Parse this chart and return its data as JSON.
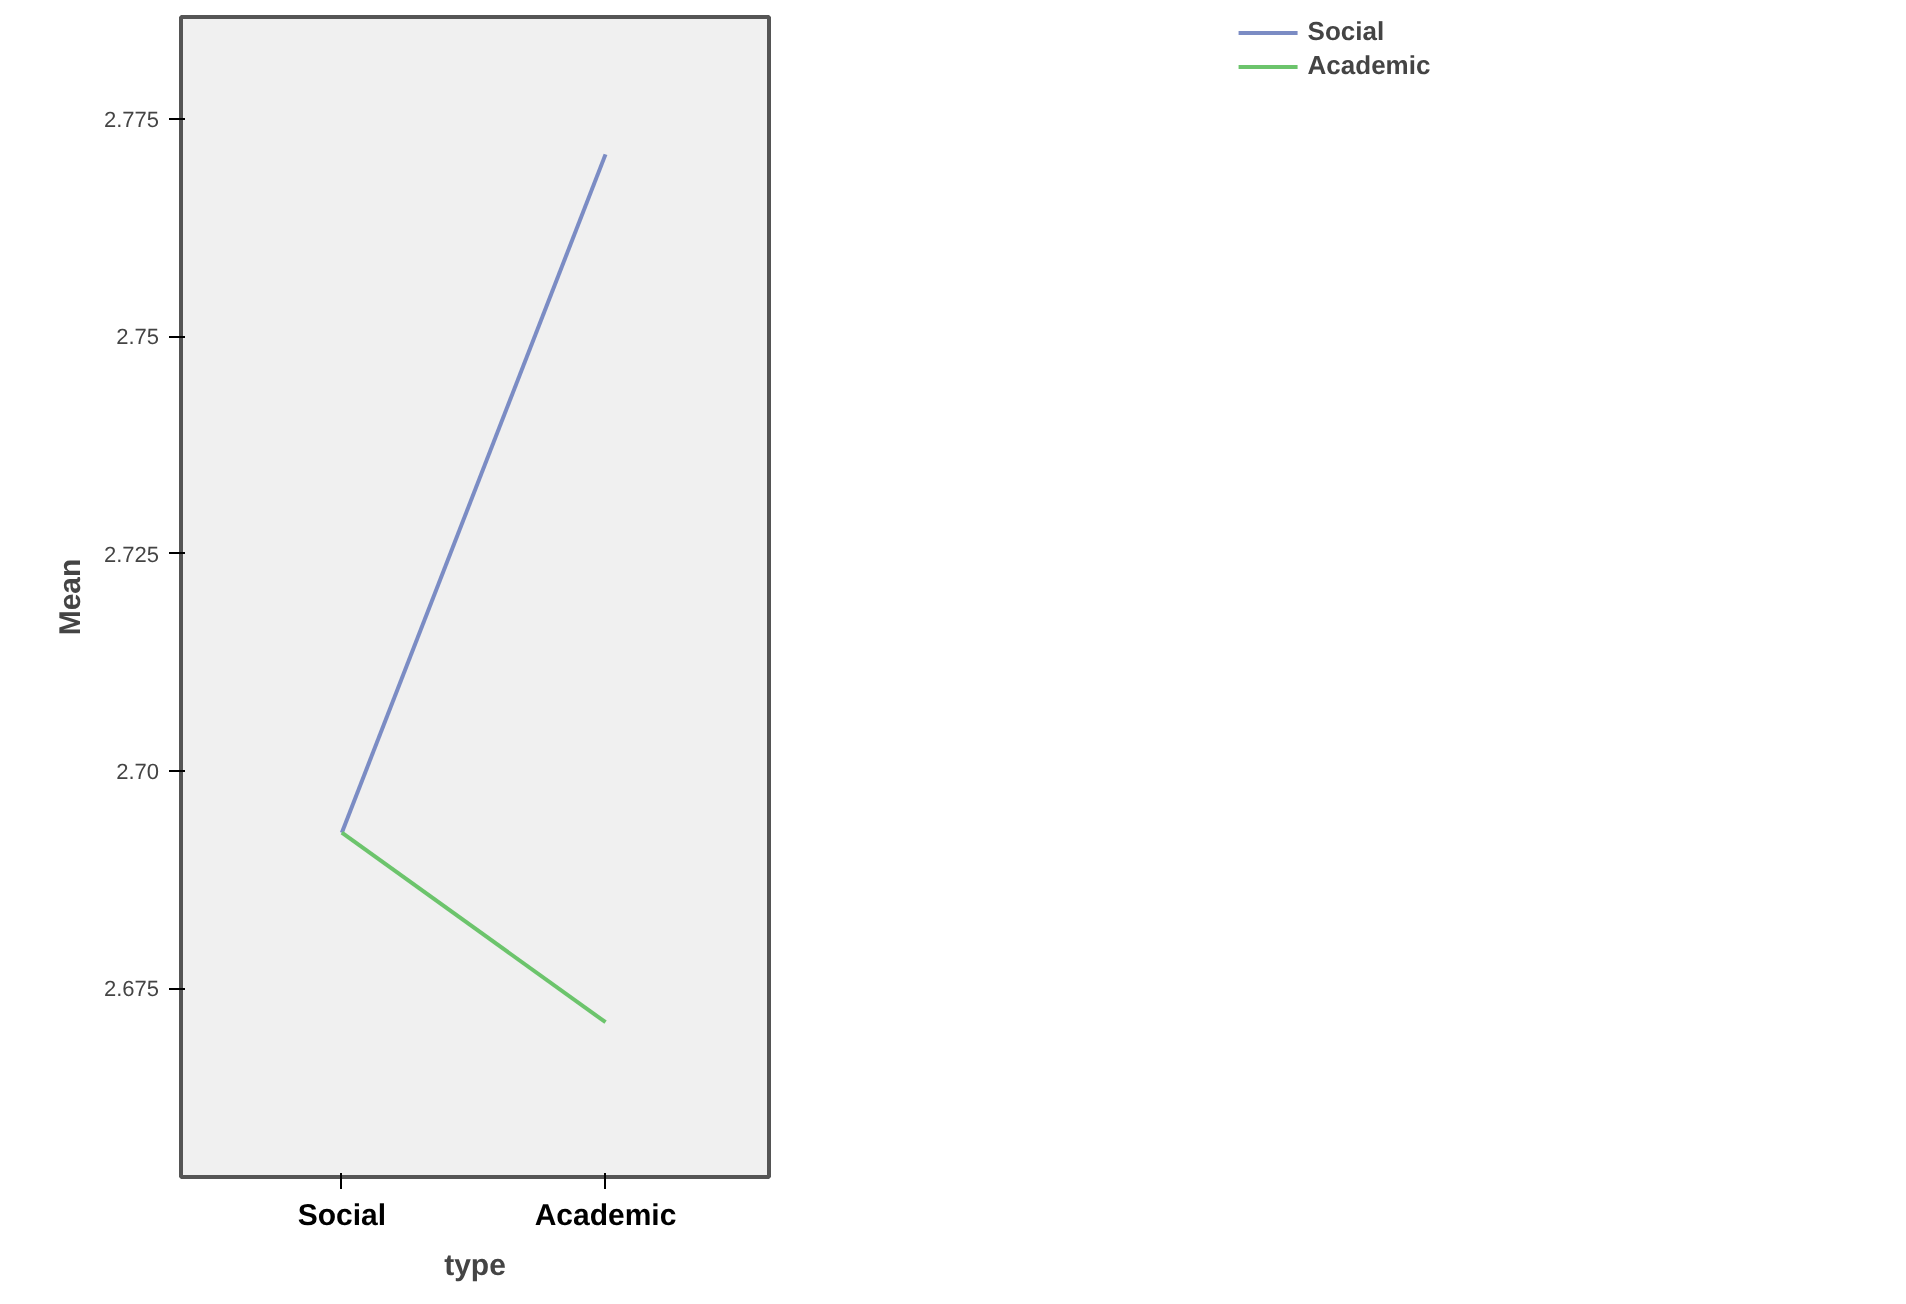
{
  "chart_data": {
    "type": "line",
    "xlabel": "type",
    "ylabel": "Mean",
    "categories": [
      "Social",
      "Academic"
    ],
    "series": [
      {
        "name": "Social",
        "color": "#7b8cc4",
        "values": [
          2.6929,
          2.7709
        ]
      },
      {
        "name": "Academic",
        "color": "#6cc46c",
        "values": [
          2.6929,
          2.6711
        ]
      }
    ],
    "ylim": [
      2.6533,
      2.7867
    ],
    "yticks": [
      {
        "value": 2.675,
        "label": "2.675"
      },
      {
        "value": 2.7,
        "label": "2.70"
      },
      {
        "value": 2.725,
        "label": "2.725"
      },
      {
        "value": 2.75,
        "label": "2.75"
      },
      {
        "value": 2.775,
        "label": "2.775"
      }
    ],
    "grid": false,
    "legend": "top right",
    "marker": "none",
    "line_style": "solid"
  }
}
